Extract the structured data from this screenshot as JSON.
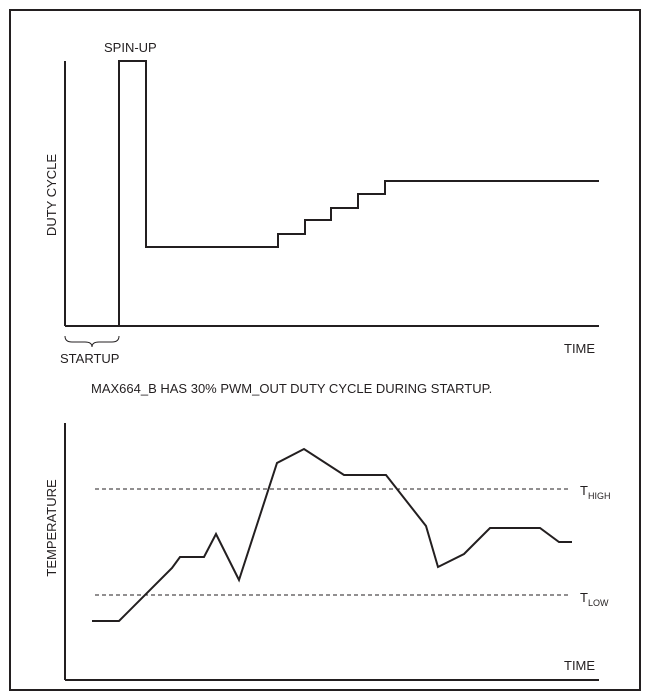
{
  "top_chart": {
    "spin_up_label": "SPIN-UP",
    "y_axis_label": "DUTY CYCLE",
    "x_axis_label": "TIME",
    "startup_label": "STARTUP"
  },
  "note": "MAX664_B HAS 30% PWM_OUT DUTY CYCLE DURING STARTUP.",
  "bottom_chart": {
    "y_axis_label": "TEMPERATURE",
    "x_axis_label": "TIME",
    "t_high_main": "T",
    "t_high_sub": "HIGH",
    "t_low_main": "T",
    "t_low_sub": "LOW"
  },
  "colors": {
    "line": "#231f20",
    "background": "#ffffff"
  }
}
